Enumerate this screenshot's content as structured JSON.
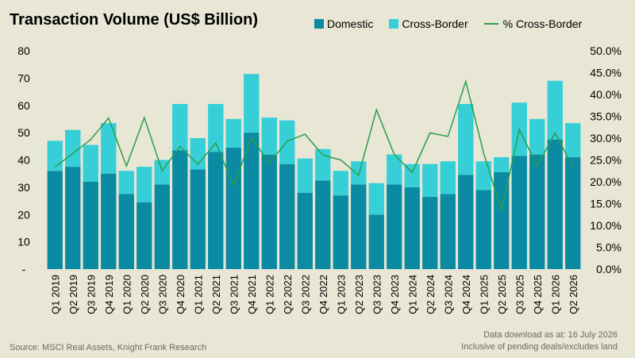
{
  "title": "Transaction Volume (US$ Billion)",
  "legend": {
    "domestic": "Domestic",
    "cross_border": "Cross-Border",
    "pct_cross_border": "% Cross-Border"
  },
  "colors": {
    "domestic": "#0b8aa3",
    "cross_border": "#36cfd8",
    "line": "#2a9e4a",
    "background": "#e8e6d4"
  },
  "footer": {
    "source": "Source: MSCI Real Assets, Knight Frank Research",
    "note_line1": "Data download as at: 16 July 2026",
    "note_line2": "Inclusive of pending deals/excludes land"
  },
  "chart_data": {
    "type": "bar",
    "stacked": true,
    "categories": [
      "Q1 2019",
      "Q2 2019",
      "Q3 2019",
      "Q4 2019",
      "Q1 2020",
      "Q2 2020",
      "Q3 2020",
      "Q4 2020",
      "Q1 2021",
      "Q2 2021",
      "Q3 2021",
      "Q4 2021",
      "Q1 2022",
      "Q2 2022",
      "Q3 2022",
      "Q4 2022",
      "Q1 2023",
      "Q2 2023",
      "Q3 2023",
      "Q4 2023",
      "Q1 2024",
      "Q2 2024",
      "Q3 2024",
      "Q4 2024",
      "Q1 2025",
      "Q2 2025",
      "Q3 2025",
      "Q4 2025",
      "Q1 2026",
      "Q2 2026"
    ],
    "series": [
      {
        "name": "Domestic",
        "axis": "left",
        "values": [
          36,
          37.5,
          32,
          35,
          27.5,
          24.5,
          31,
          43.5,
          36.5,
          43,
          44.5,
          50,
          42,
          38.5,
          28,
          32.5,
          27,
          31,
          20,
          31,
          30,
          26.5,
          27.5,
          34.5,
          29,
          35.5,
          41.5,
          42,
          47.5,
          41
        ]
      },
      {
        "name": "Cross-Border",
        "axis": "left",
        "values": [
          11,
          13.5,
          13.5,
          18.5,
          8.5,
          13,
          9,
          17,
          11.5,
          17.5,
          10.5,
          21.5,
          13.5,
          16,
          12.5,
          11.5,
          9,
          8.5,
          11.5,
          11,
          8.5,
          12,
          12,
          26,
          10.5,
          5.5,
          19.5,
          13,
          21.5,
          12.5
        ]
      },
      {
        "name": "% Cross-Border",
        "type": "line",
        "axis": "right",
        "values": [
          23.4,
          26.5,
          29.7,
          34.6,
          23.6,
          34.7,
          22.5,
          28.1,
          24.0,
          28.9,
          19.1,
          30.1,
          24.3,
          29.3,
          30.9,
          26.1,
          25.0,
          21.5,
          36.5,
          26.2,
          22.1,
          31.2,
          30.4,
          43.0,
          26.6,
          13.4,
          32.0,
          23.6,
          31.2,
          23.4
        ]
      }
    ],
    "y_left": {
      "ticks": [
        "-",
        "10",
        "20",
        "30",
        "40",
        "50",
        "60",
        "70",
        "80"
      ],
      "ylim": [
        0,
        80
      ]
    },
    "y_right": {
      "ticks": [
        "0.0%",
        "5.0%",
        "10.0%",
        "15.0%",
        "20.0%",
        "25.0%",
        "30.0%",
        "35.0%",
        "40.0%",
        "45.0%",
        "50.0%"
      ],
      "ylim": [
        0,
        50
      ]
    },
    "grid": false,
    "legend_position": "top-right"
  }
}
